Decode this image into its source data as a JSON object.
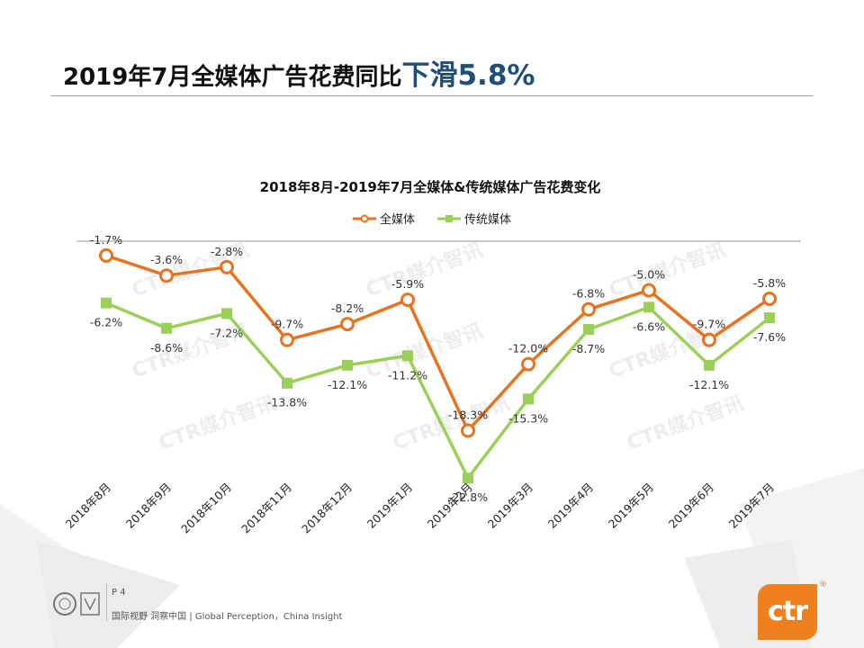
{
  "header": {
    "title_main": "2019年7月全媒体广告花费同比",
    "title_emphasis": "下滑",
    "title_number": "5.8%"
  },
  "watermark": "CTR媒介智讯",
  "chart_data": {
    "type": "line",
    "title": "2018年8月-2019年7月全媒体&传统媒体广告花费变化",
    "categories": [
      "2018年8月",
      "2018年9月",
      "2018年10月",
      "2018年11月",
      "2018年12月",
      "2019年1月",
      "2019年2月",
      "2019年3月",
      "2019年4月",
      "2019年5月",
      "2019年6月",
      "2019年7月"
    ],
    "series": [
      {
        "name": "全媒体",
        "color": "#e8731e",
        "marker": "circle",
        "values": [
          -1.7,
          -3.6,
          -2.8,
          -9.7,
          -8.2,
          -5.9,
          -18.3,
          -12.0,
          -6.8,
          -5.0,
          -9.7,
          -5.8
        ],
        "labels": [
          "-1.7%",
          "-3.6%",
          "-2.8%",
          "-9.7%",
          "-8.2%",
          "-5.9%",
          "-18.3%",
          "-12.0%",
          "-6.8%",
          "-5.0%",
          "-9.7%",
          "-5.8%"
        ]
      },
      {
        "name": "传统媒体",
        "color": "#9bd058",
        "marker": "square",
        "values": [
          -6.2,
          -8.6,
          -7.2,
          -13.8,
          -12.1,
          -11.2,
          -22.8,
          -15.3,
          -8.7,
          -6.6,
          -12.1,
          -7.6
        ],
        "labels": [
          "-6.2%",
          "-8.6%",
          "-7.2%",
          "-13.8%",
          "-12.1%",
          "-11.2%",
          "-22.8%",
          "-15.3%",
          "-8.7%",
          "-6.6%",
          "-12.1%",
          "-7.6%"
        ]
      }
    ],
    "ylim": [
      -25,
      0
    ],
    "legend": "top-center",
    "grid": false
  },
  "footer": {
    "page": "P 4",
    "tagline": "国际视野  洞察中国 | Global Perception，China Insight",
    "logo_text": "ctr",
    "logo_mark": "®"
  },
  "colors": {
    "accent_blue": "#1f4e79",
    "orange": "#e8731e",
    "green": "#9bd058"
  }
}
